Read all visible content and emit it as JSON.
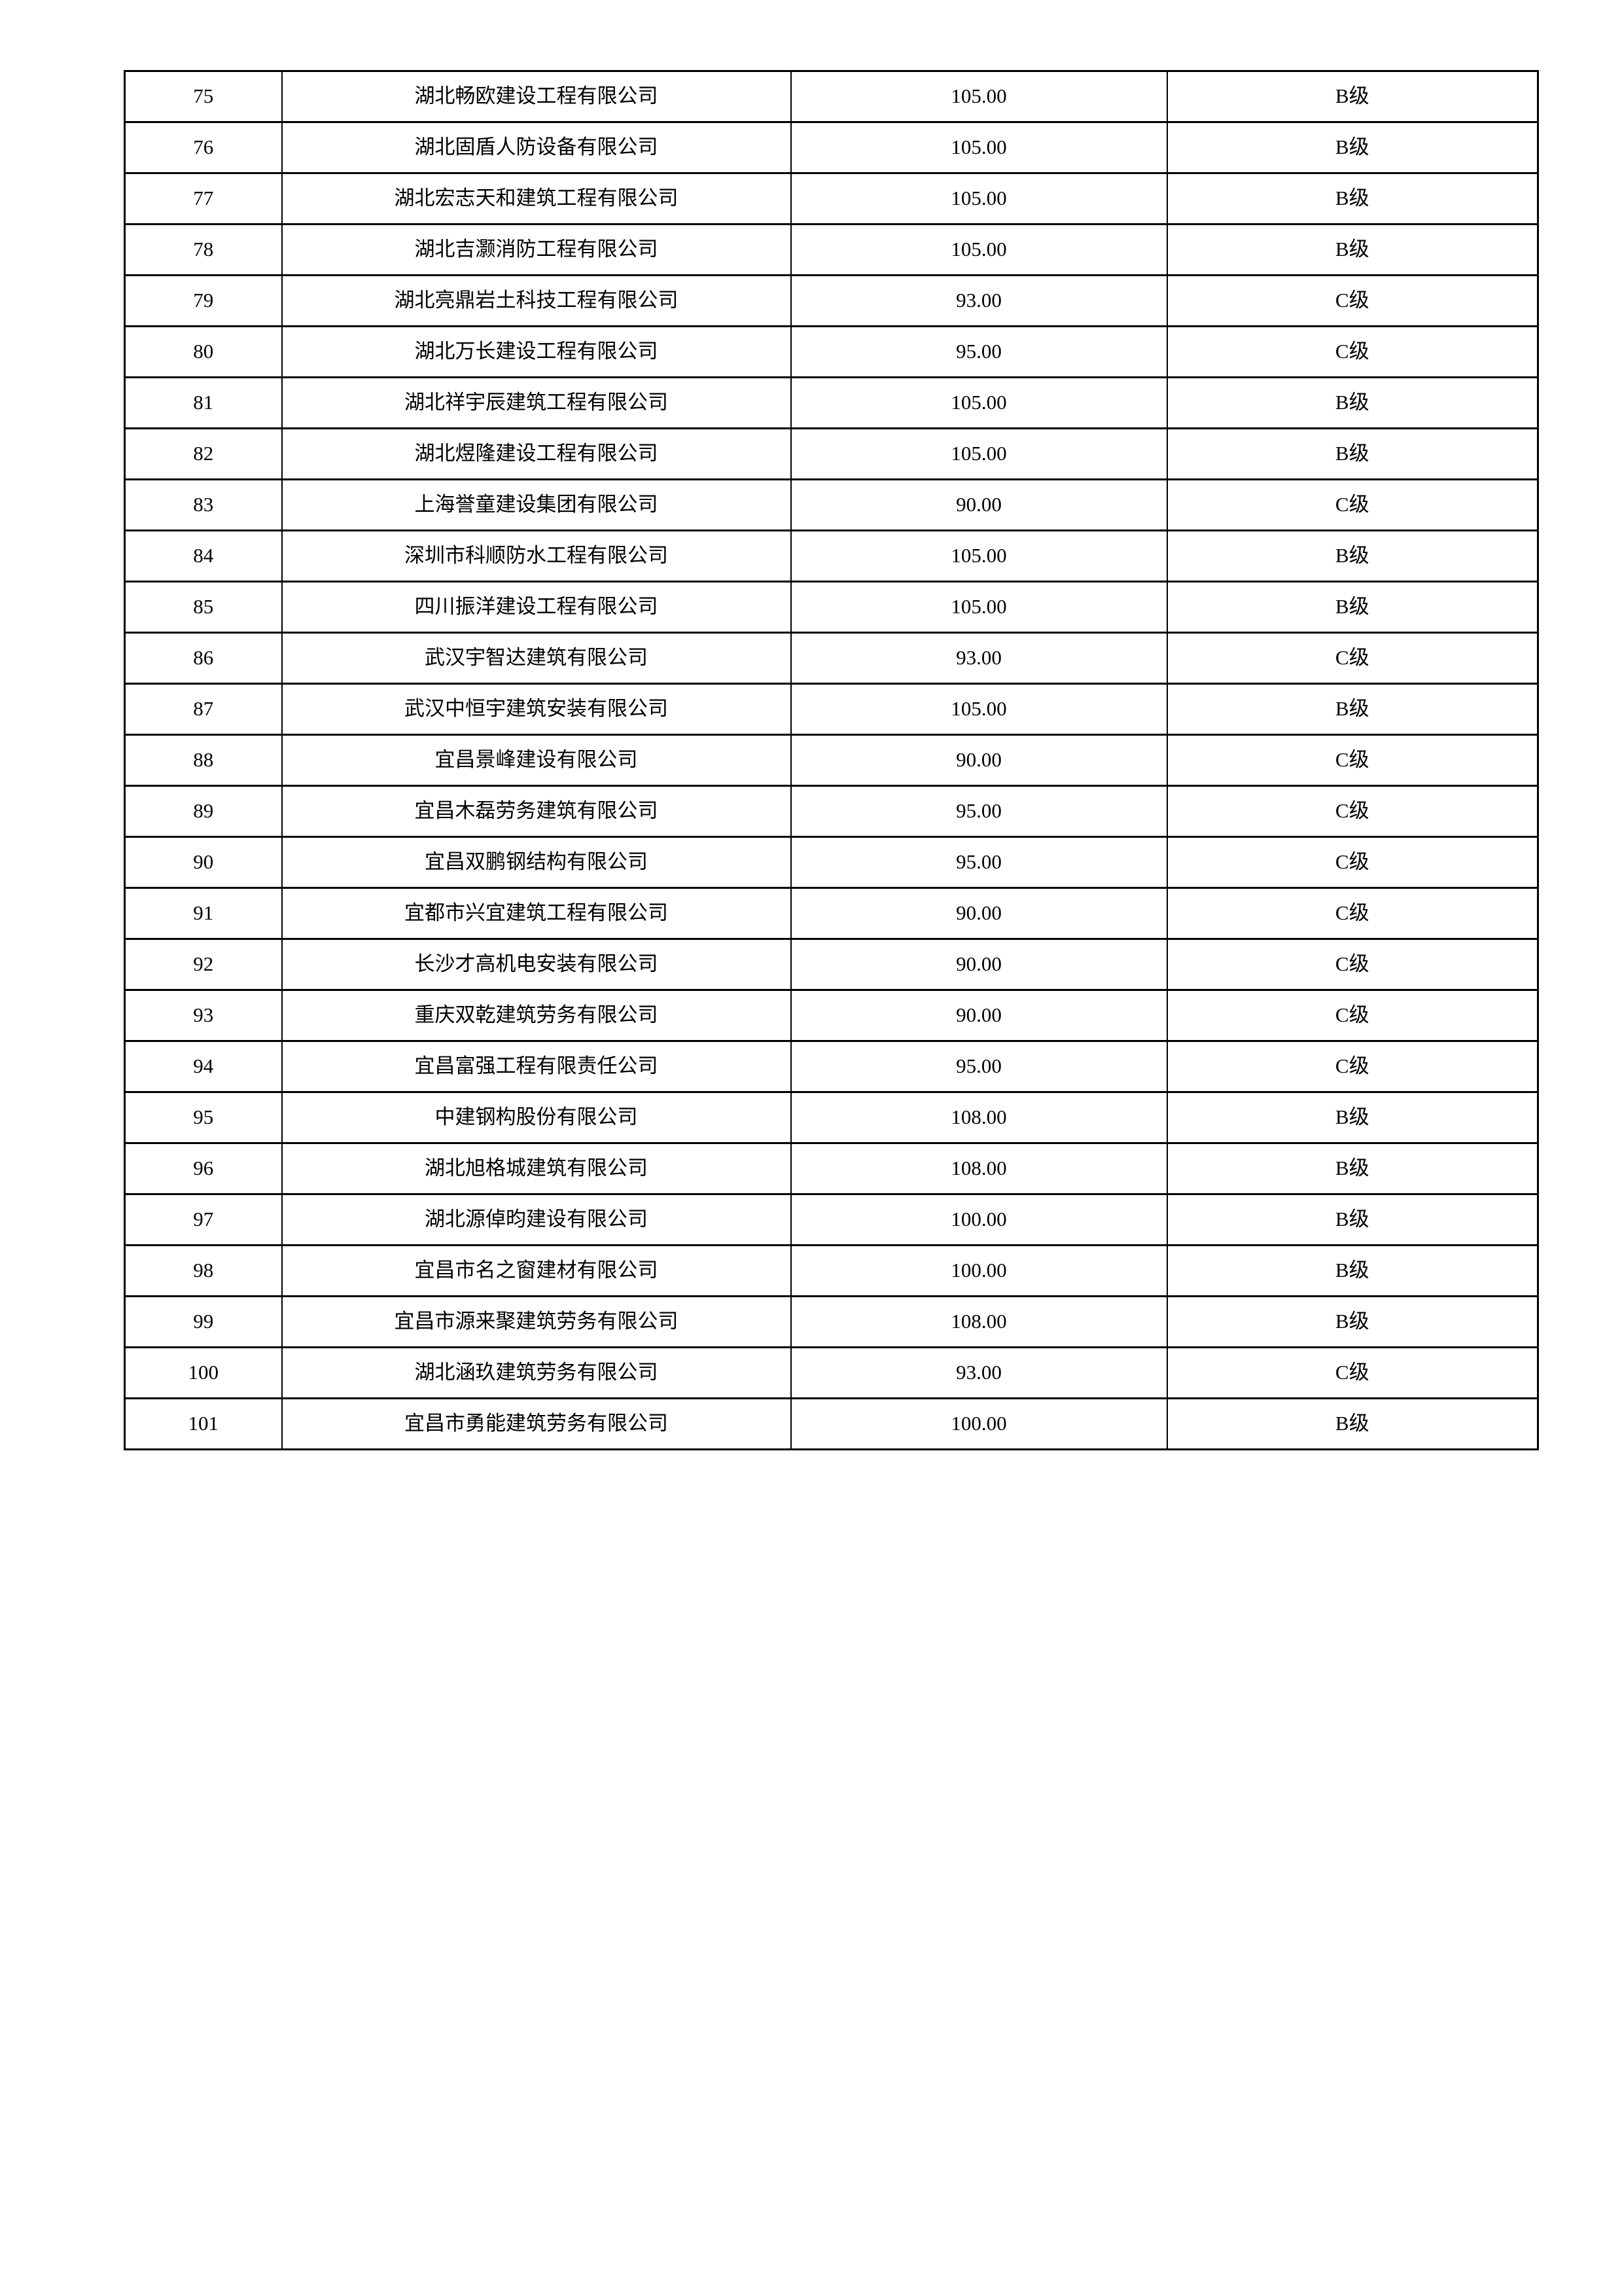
{
  "table": {
    "rows": [
      {
        "no": "75",
        "company": "湖北畅欧建设工程有限公司",
        "score": "105.00",
        "grade": "B级"
      },
      {
        "no": "76",
        "company": "湖北固盾人防设备有限公司",
        "score": "105.00",
        "grade": "B级"
      },
      {
        "no": "77",
        "company": "湖北宏志天和建筑工程有限公司",
        "score": "105.00",
        "grade": "B级"
      },
      {
        "no": "78",
        "company": "湖北吉灏消防工程有限公司",
        "score": "105.00",
        "grade": "B级"
      },
      {
        "no": "79",
        "company": "湖北亮鼎岩土科技工程有限公司",
        "score": "93.00",
        "grade": "C级"
      },
      {
        "no": "80",
        "company": "湖北万长建设工程有限公司",
        "score": "95.00",
        "grade": "C级"
      },
      {
        "no": "81",
        "company": "湖北祥宇辰建筑工程有限公司",
        "score": "105.00",
        "grade": "B级"
      },
      {
        "no": "82",
        "company": "湖北煜隆建设工程有限公司",
        "score": "105.00",
        "grade": "B级"
      },
      {
        "no": "83",
        "company": "上海誉童建设集团有限公司",
        "score": "90.00",
        "grade": "C级"
      },
      {
        "no": "84",
        "company": "深圳市科顺防水工程有限公司",
        "score": "105.00",
        "grade": "B级"
      },
      {
        "no": "85",
        "company": "四川振洋建设工程有限公司",
        "score": "105.00",
        "grade": "B级"
      },
      {
        "no": "86",
        "company": "武汉宇智达建筑有限公司",
        "score": "93.00",
        "grade": "C级"
      },
      {
        "no": "87",
        "company": "武汉中恒宇建筑安装有限公司",
        "score": "105.00",
        "grade": "B级"
      },
      {
        "no": "88",
        "company": "宜昌景峰建设有限公司",
        "score": "90.00",
        "grade": "C级"
      },
      {
        "no": "89",
        "company": "宜昌木磊劳务建筑有限公司",
        "score": "95.00",
        "grade": "C级"
      },
      {
        "no": "90",
        "company": "宜昌双鹏钢结构有限公司",
        "score": "95.00",
        "grade": "C级"
      },
      {
        "no": "91",
        "company": "宜都市兴宜建筑工程有限公司",
        "score": "90.00",
        "grade": "C级"
      },
      {
        "no": "92",
        "company": "长沙才高机电安装有限公司",
        "score": "90.00",
        "grade": "C级"
      },
      {
        "no": "93",
        "company": "重庆双乾建筑劳务有限公司",
        "score": "90.00",
        "grade": "C级"
      },
      {
        "no": "94",
        "company": "宜昌富强工程有限责任公司",
        "score": "95.00",
        "grade": "C级"
      },
      {
        "no": "95",
        "company": "中建钢构股份有限公司",
        "score": "108.00",
        "grade": "B级"
      },
      {
        "no": "96",
        "company": "湖北旭格城建筑有限公司",
        "score": "108.00",
        "grade": "B级"
      },
      {
        "no": "97",
        "company": "湖北源倬昀建设有限公司",
        "score": "100.00",
        "grade": "B级"
      },
      {
        "no": "98",
        "company": "宜昌市名之窗建材有限公司",
        "score": "100.00",
        "grade": "B级"
      },
      {
        "no": "99",
        "company": "宜昌市源来聚建筑劳务有限公司",
        "score": "108.00",
        "grade": "B级"
      },
      {
        "no": "100",
        "company": "湖北涵玖建筑劳务有限公司",
        "score": "93.00",
        "grade": "C级"
      },
      {
        "no": "101",
        "company": "宜昌市勇能建筑劳务有限公司",
        "score": "100.00",
        "grade": "B级"
      }
    ],
    "grade_b_label": "B级",
    "grade_c_label": "C级"
  },
  "colors": {
    "page_background": "#ffffff",
    "border": "#000000",
    "text": "#000000"
  }
}
